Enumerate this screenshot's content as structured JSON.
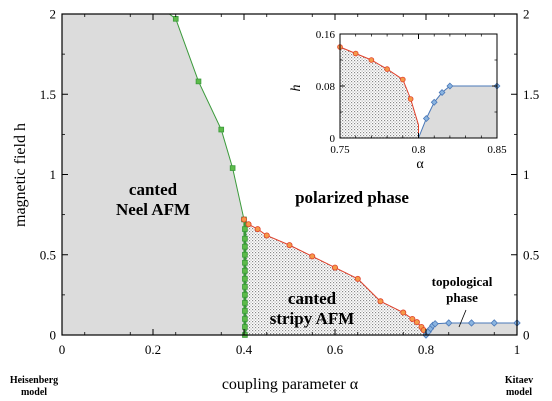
{
  "chart_data": [
    {
      "type": "line",
      "xlabel": "coupling parameter  α",
      "ylabel": "magnetic field  h",
      "xlim": [
        0,
        1
      ],
      "ylim": [
        0,
        2
      ],
      "x_ticks": [
        "0",
        "0.2",
        "0.4",
        "0.6",
        "0.8",
        "1"
      ],
      "y_ticks": [
        "0",
        "0.5",
        "1",
        "1.5",
        "2"
      ],
      "y_ticks_right": [
        "0",
        "0.5",
        "1",
        "1.5",
        "2"
      ],
      "left_corner_label": [
        "Heisenberg",
        "model"
      ],
      "right_corner_label": [
        "Kitaev",
        "model"
      ],
      "regions": {
        "canted_neel": [
          "canted",
          "Neel AFM"
        ],
        "polarized": [
          "polarized phase"
        ],
        "canted_stripy": [
          "canted",
          "stripy AFM"
        ],
        "topological": [
          "topological",
          "phase"
        ]
      },
      "colors": {
        "neel_fill": "#dcdcdc",
        "topo_fill": "#dcdcdc",
        "green_line": "#3a9a3a",
        "green_marker": "#5dbb4a",
        "red_line": "#e0402a",
        "orange_marker": "#f59a4a",
        "blue_line": "#4a78b8",
        "blue_marker": "#8ab4e0"
      },
      "series": [
        {
          "marker": "square",
          "points": [
            [
              0.25,
              1.97
            ],
            [
              0.3,
              1.58
            ],
            [
              0.35,
              1.28
            ],
            [
              0.375,
              1.04
            ],
            [
              0.4,
              0.72
            ],
            [
              0.402,
              0.66
            ],
            [
              0.402,
              0.6
            ],
            [
              0.402,
              0.55
            ],
            [
              0.402,
              0.5
            ],
            [
              0.402,
              0.45
            ],
            [
              0.402,
              0.4
            ],
            [
              0.402,
              0.35
            ],
            [
              0.402,
              0.3
            ],
            [
              0.402,
              0.25
            ],
            [
              0.402,
              0.2
            ],
            [
              0.402,
              0.15
            ],
            [
              0.402,
              0.1
            ],
            [
              0.402,
              0.05
            ],
            [
              0.402,
              0.0
            ]
          ]
        },
        {
          "marker": "circle",
          "points": [
            [
              0.4,
              0.72
            ],
            [
              0.41,
              0.69
            ],
            [
              0.43,
              0.66
            ],
            [
              0.45,
              0.62
            ],
            [
              0.5,
              0.56
            ],
            [
              0.55,
              0.49
            ],
            [
              0.6,
              0.42
            ],
            [
              0.65,
              0.35
            ],
            [
              0.7,
              0.21
            ],
            [
              0.75,
              0.14
            ],
            [
              0.77,
              0.1
            ],
            [
              0.78,
              0.08
            ],
            [
              0.79,
              0.05
            ],
            [
              0.795,
              0.03
            ]
          ]
        },
        {
          "marker": "diamond",
          "points": [
            [
              0.8,
              0.0
            ],
            [
              0.805,
              0.02
            ],
            [
              0.81,
              0.04
            ],
            [
              0.815,
              0.06
            ],
            [
              0.82,
              0.07
            ],
            [
              0.85,
              0.075
            ],
            [
              0.9,
              0.075
            ],
            [
              0.95,
              0.075
            ],
            [
              1.0,
              0.075
            ]
          ]
        }
      ]
    },
    {
      "type": "line",
      "xlabel": "α",
      "ylabel": "h",
      "xlim": [
        0.75,
        0.85
      ],
      "ylim": [
        0,
        0.16
      ],
      "x_ticks": [
        "0.75",
        "0.8",
        "0.85"
      ],
      "y_ticks": [
        "0",
        "0.08",
        "0.16"
      ],
      "series": [
        {
          "marker": "circle",
          "points": [
            [
              0.75,
              0.14
            ],
            [
              0.76,
              0.13
            ],
            [
              0.77,
              0.12
            ],
            [
              0.78,
              0.106
            ],
            [
              0.79,
              0.09
            ],
            [
              0.795,
              0.06
            ],
            [
              0.8,
              0.02
            ],
            [
              0.8,
              0.0
            ]
          ]
        },
        {
          "marker": "diamond",
          "points": [
            [
              0.8,
              0.0
            ],
            [
              0.805,
              0.03
            ],
            [
              0.81,
              0.055
            ],
            [
              0.815,
              0.07
            ],
            [
              0.82,
              0.08
            ],
            [
              0.85,
              0.08
            ]
          ]
        }
      ]
    }
  ]
}
